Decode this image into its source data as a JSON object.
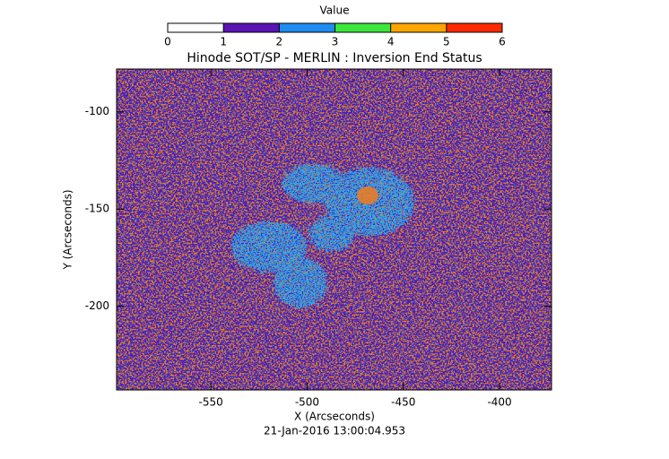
{
  "chart_data": {
    "type": "heatmap",
    "title": "Hinode SOT/SP - MERLIN : Inversion End Status",
    "xlabel": "X (Arcseconds)",
    "ylabel": "Y (Arcseconds)",
    "footer": "21-Jan-2016 13:00:04.953",
    "xlim": [
      -599,
      -373
    ],
    "xticks": [
      -550,
      -500,
      -450,
      -400
    ],
    "ylim": [
      -243,
      -78
    ],
    "yticks": [
      -100,
      -150,
      -200
    ],
    "colorbar": {
      "label": "Value",
      "ticks": [
        0,
        1,
        2,
        3,
        4,
        5,
        6
      ],
      "colors": [
        "#ffffff",
        "#5a14b4",
        "#1e8cf0",
        "#3ce63c",
        "#ffa500",
        "#ff2a00"
      ]
    }
  }
}
